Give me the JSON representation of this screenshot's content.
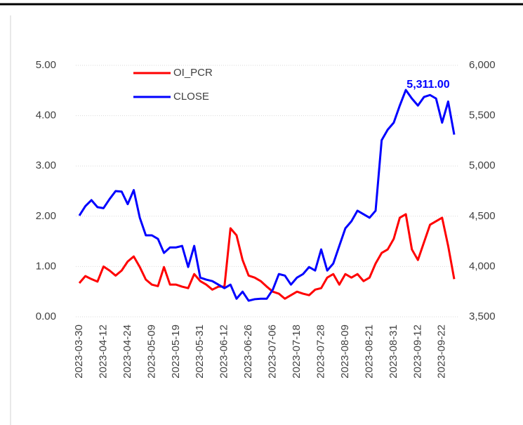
{
  "chart_data": {
    "type": "line",
    "categories": [
      "2023-03-30",
      null,
      null,
      null,
      "2023-04-12",
      null,
      null,
      null,
      "2023-04-24",
      null,
      null,
      null,
      "2023-05-09",
      null,
      null,
      null,
      "2023-05-19",
      null,
      null,
      null,
      "2023-05-31",
      null,
      null,
      null,
      "2023-06-12",
      null,
      null,
      null,
      "2023-06-26",
      null,
      null,
      null,
      "2023-07-06",
      null,
      null,
      null,
      "2023-07-18",
      null,
      null,
      null,
      "2023-07-28",
      null,
      null,
      null,
      "2023-08-09",
      null,
      null,
      null,
      "2023-08-21",
      null,
      null,
      null,
      "2023-08-31",
      null,
      null,
      null,
      "2023-09-12",
      null,
      null,
      null,
      "2023-09-22",
      null,
      null
    ],
    "series": [
      {
        "name": "OI_PCR",
        "color": "#ff0000",
        "axis": "y",
        "values": [
          0.67,
          0.81,
          0.75,
          0.7,
          1.0,
          0.92,
          0.82,
          0.92,
          1.1,
          1.2,
          0.99,
          0.74,
          0.64,
          0.61,
          0.99,
          0.64,
          0.64,
          0.6,
          0.57,
          0.85,
          0.71,
          0.64,
          0.54,
          0.6,
          0.6,
          1.76,
          1.62,
          1.13,
          0.82,
          0.78,
          0.71,
          0.6,
          0.5,
          0.46,
          0.36,
          0.43,
          0.5,
          0.46,
          0.43,
          0.54,
          0.57,
          0.78,
          0.85,
          0.64,
          0.85,
          0.78,
          0.85,
          0.71,
          0.78,
          1.06,
          1.27,
          1.34,
          1.55,
          1.97,
          2.04,
          1.34,
          1.13,
          1.48,
          1.83,
          1.9,
          1.97,
          1.41,
          0.75
        ]
      },
      {
        "name": "CLOSE",
        "color": "#0000ff",
        "axis": "y2",
        "values": [
          4506,
          4600,
          4660,
          4590,
          4580,
          4670,
          4750,
          4745,
          4620,
          4760,
          4485,
          4310,
          4310,
          4275,
          4135,
          4190,
          4190,
          4205,
          3995,
          4205,
          3890,
          3870,
          3855,
          3820,
          3785,
          3820,
          3680,
          3750,
          3660,
          3675,
          3680,
          3680,
          3770,
          3925,
          3910,
          3820,
          3890,
          3925,
          3995,
          3960,
          4170,
          3960,
          4030,
          4205,
          4380,
          4450,
          4555,
          4520,
          4485,
          4555,
          5255,
          5360,
          5430,
          5600,
          5755,
          5670,
          5600,
          5685,
          5705,
          5670,
          5430,
          5640,
          5311
        ]
      }
    ],
    "annotation": "5,311.00",
    "ylim": [
      0,
      5
    ],
    "yticks": [
      {
        "value": 0,
        "label": "0.00"
      },
      {
        "value": 1,
        "label": "1.00"
      },
      {
        "value": 2,
        "label": "2.00"
      },
      {
        "value": 3,
        "label": "3.00"
      },
      {
        "value": 4,
        "label": "4.00"
      },
      {
        "value": 5,
        "label": "5.00"
      }
    ],
    "y2lim": [
      3500,
      6000
    ],
    "y2ticks": [
      {
        "value": 3500,
        "label": "3,500"
      },
      {
        "value": 4000,
        "label": "4,000"
      },
      {
        "value": 4500,
        "label": "4,500"
      },
      {
        "value": 5000,
        "label": "5,000"
      },
      {
        "value": 5500,
        "label": "5,500"
      },
      {
        "value": 6000,
        "label": "6,000"
      }
    ],
    "grid": true,
    "legend": "upper left"
  }
}
